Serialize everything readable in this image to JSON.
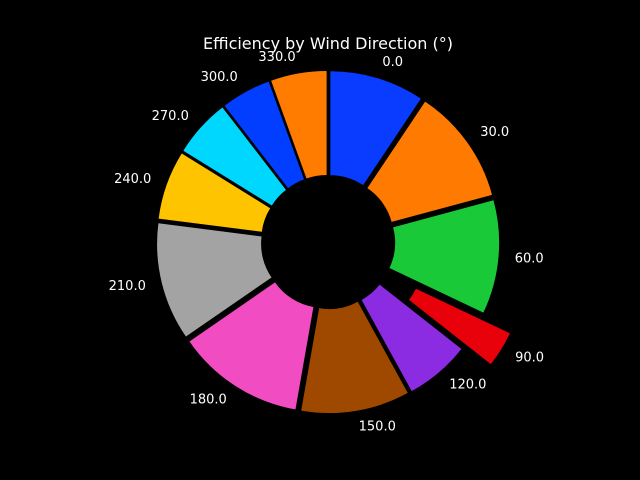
{
  "chart_data": {
    "type": "pie",
    "variant": "donut",
    "title": "Efficiency by Wind Direction (°)",
    "start_angle_deg": 90,
    "direction": "clockwise",
    "categories": [
      "0.0",
      "30.0",
      "60.0",
      "90.0",
      "120.0",
      "150.0",
      "180.0",
      "210.0",
      "240.0",
      "270.0",
      "300.0",
      "330.0"
    ],
    "values": [
      9.5,
      11.6,
      11.4,
      3.6,
      6.5,
      10.9,
      12.8,
      11.8,
      6.9,
      5.8,
      5.0,
      5.6
    ],
    "explode": [
      0.05,
      0.05,
      0.05,
      0.25,
      0.05,
      0.05,
      0.05,
      0.05,
      0.05,
      0.05,
      0.05,
      0.05
    ],
    "colors": [
      "#0a3cff",
      "#ff7a00",
      "#1ac938",
      "#e8000b",
      "#8b2be2",
      "#9f4800",
      "#f14cc1",
      "#a3a3a3",
      "#ffc400",
      "#00d7ff",
      "#023eff",
      "#ff7c00"
    ],
    "background": "#000000",
    "text_color": "#ffffff"
  }
}
